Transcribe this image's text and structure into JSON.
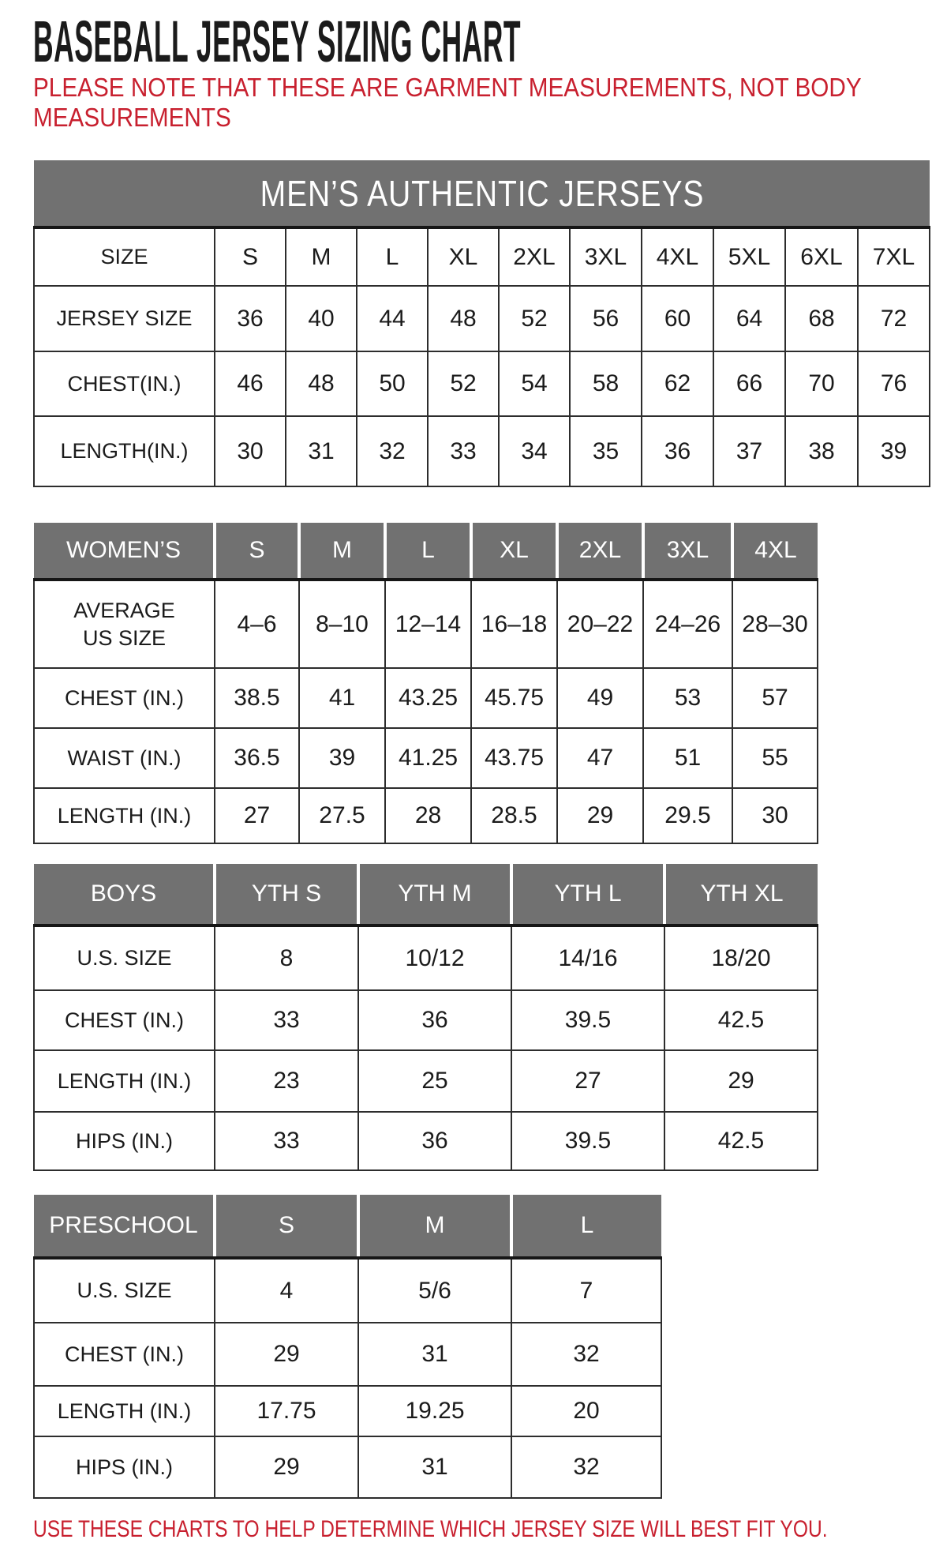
{
  "page": {
    "title": "BASEBALL JERSEY SIZING CHART",
    "note": "PLEASE NOTE THAT THESE ARE GARMENT MEASUREMENTS, NOT BODY MEASUREMENTS",
    "footer": "USE THESE CHARTS TO HELP DETERMINE WHICH JERSEY SIZE WILL BEST FIT YOU.",
    "colors": {
      "accent_red": "#c8202f",
      "header_gray": "#717171"
    }
  },
  "tables": [
    {
      "id": "mens",
      "banner": "MEN’S AUTHENTIC JERSEYS",
      "header_row": {
        "label": "SIZE",
        "cells": [
          "S",
          "M",
          "L",
          "XL",
          "2XL",
          "3XL",
          "4XL",
          "5XL",
          "6XL",
          "7XL"
        ]
      },
      "rows": [
        {
          "label": "JERSEY SIZE",
          "cells": [
            "36",
            "40",
            "44",
            "48",
            "52",
            "56",
            "60",
            "64",
            "68",
            "72"
          ]
        },
        {
          "label": "CHEST(IN.)",
          "cells": [
            "46",
            "48",
            "50",
            "52",
            "54",
            "58",
            "62",
            "66",
            "70",
            "76"
          ]
        },
        {
          "label": "LENGTH(IN.)",
          "cells": [
            "30",
            "31",
            "32",
            "33",
            "34",
            "35",
            "36",
            "37",
            "38",
            "39"
          ]
        }
      ]
    },
    {
      "id": "womens",
      "header_row": {
        "label": "WOMEN’S",
        "cells": [
          "S",
          "M",
          "L",
          "XL",
          "2XL",
          "3XL",
          "4XL"
        ]
      },
      "rows": [
        {
          "label": "AVERAGE US SIZE",
          "cells": [
            "4–6",
            "8–10",
            "12–14",
            "16–18",
            "20–22",
            "24–26",
            "28–30"
          ]
        },
        {
          "label": "CHEST (IN.)",
          "cells": [
            "38.5",
            "41",
            "43.25",
            "45.75",
            "49",
            "53",
            "57"
          ]
        },
        {
          "label": "WAIST (IN.)",
          "cells": [
            "36.5",
            "39",
            "41.25",
            "43.75",
            "47",
            "51",
            "55"
          ]
        },
        {
          "label": "LENGTH (IN.)",
          "cells": [
            "27",
            "27.5",
            "28",
            "28.5",
            "29",
            "29.5",
            "30"
          ]
        }
      ]
    },
    {
      "id": "boys",
      "header_row": {
        "label": "BOYS",
        "cells": [
          "YTH S",
          "YTH M",
          "YTH L",
          "YTH XL"
        ]
      },
      "rows": [
        {
          "label": "U.S. SIZE",
          "cells": [
            "8",
            "10/12",
            "14/16",
            "18/20"
          ]
        },
        {
          "label": "CHEST (IN.)",
          "cells": [
            "33",
            "36",
            "39.5",
            "42.5"
          ]
        },
        {
          "label": "LENGTH (IN.)",
          "cells": [
            "23",
            "25",
            "27",
            "29"
          ]
        },
        {
          "label": "HIPS (IN.)",
          "cells": [
            "33",
            "36",
            "39.5",
            "42.5"
          ]
        }
      ]
    },
    {
      "id": "preschool",
      "header_row": {
        "label": "PRESCHOOL",
        "cells": [
          "S",
          "M",
          "L"
        ]
      },
      "rows": [
        {
          "label": "U.S. SIZE",
          "cells": [
            "4",
            "5/6",
            "7"
          ]
        },
        {
          "label": "CHEST (IN.)",
          "cells": [
            "29",
            "31",
            "32"
          ]
        },
        {
          "label": "LENGTH (IN.)",
          "cells": [
            "17.75",
            "19.25",
            "20"
          ]
        },
        {
          "label": "HIPS (IN.)",
          "cells": [
            "29",
            "31",
            "32"
          ]
        }
      ]
    }
  ]
}
